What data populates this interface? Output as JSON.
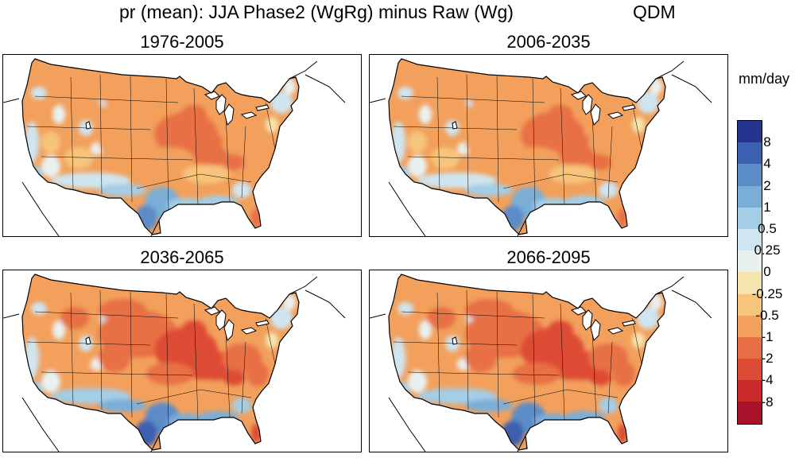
{
  "title": {
    "main": "pr (mean): JJA Phase2 (WgRg) minus Raw (Wg)",
    "method": "QDM"
  },
  "panels": [
    {
      "label": "1976-2005",
      "intensity": 0.92
    },
    {
      "label": "2006-2035",
      "intensity": 1.0
    },
    {
      "label": "2036-2065",
      "intensity": 1.08
    },
    {
      "label": "2066-2095",
      "intensity": 1.12
    }
  ],
  "colorbar": {
    "units": "mm/day",
    "labels": [
      "8",
      "4",
      "2",
      "1",
      "0.5",
      "0.25",
      "0",
      "-0.25",
      "-0.5",
      "-1",
      "-2",
      "-4",
      "-8"
    ],
    "colors": [
      "#24348f",
      "#3d5fb0",
      "#5b8cc8",
      "#7aaed7",
      "#a4cde6",
      "#cfe5ef",
      "#e9f1f0",
      "#f5e5ad",
      "#f6c47a",
      "#f2a05c",
      "#e86f45",
      "#de4b36",
      "#c82a2a",
      "#a8122a"
    ]
  }
}
